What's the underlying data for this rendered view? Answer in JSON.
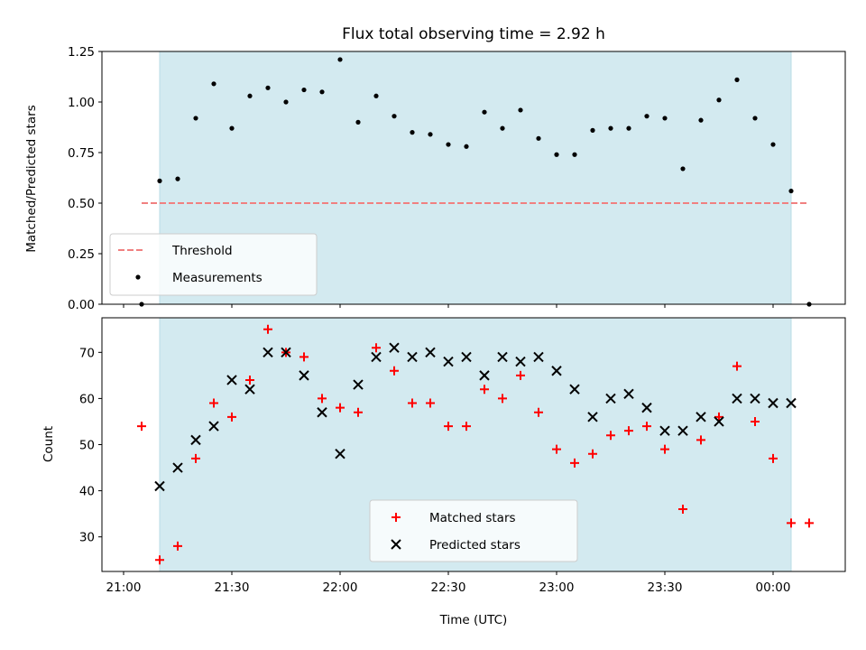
{
  "chart_data": [
    {
      "type": "scatter",
      "title": "Flux total observing time = 2.92 h",
      "ylabel": "Matched/Predicted stars",
      "xlabel": "",
      "ylim": [
        0,
        1.25
      ],
      "yticks": [
        "0.00",
        "0.25",
        "0.50",
        "0.75",
        "1.00",
        "1.25"
      ],
      "shaded_span": [
        "21:10",
        "00:05"
      ],
      "threshold": {
        "name": "Threshold",
        "value": 0.5,
        "x_range": [
          "21:05",
          "00:10"
        ],
        "color": "#f08080"
      },
      "series": [
        {
          "name": "Measurements",
          "marker": "dot",
          "color": "#000000",
          "x": [
            "21:05",
            "21:10",
            "21:15",
            "21:20",
            "21:25",
            "21:30",
            "21:35",
            "21:40",
            "21:45",
            "21:50",
            "21:55",
            "22:00",
            "22:05",
            "22:10",
            "22:15",
            "22:20",
            "22:25",
            "22:30",
            "22:35",
            "22:40",
            "22:45",
            "22:50",
            "22:55",
            "23:00",
            "23:05",
            "23:10",
            "23:15",
            "23:20",
            "23:25",
            "23:30",
            "23:35",
            "23:40",
            "23:45",
            "23:50",
            "23:55",
            "00:00",
            "00:05",
            "00:10"
          ],
          "y": [
            0.0,
            0.61,
            0.62,
            0.92,
            1.09,
            0.87,
            1.03,
            1.07,
            1.0,
            1.06,
            1.05,
            1.21,
            0.9,
            1.03,
            0.93,
            0.85,
            0.84,
            0.79,
            0.78,
            0.95,
            0.87,
            0.96,
            0.82,
            0.74,
            0.74,
            0.86,
            0.87,
            0.87,
            0.93,
            0.92,
            0.67,
            0.91,
            1.01,
            1.11,
            0.92,
            0.79,
            0.56,
            0.0
          ]
        }
      ],
      "legend": "lower-left"
    },
    {
      "type": "scatter",
      "title": "",
      "ylabel": "Count",
      "xlabel": "Time (UTC)",
      "ylim": [
        22.5,
        77.5
      ],
      "yticks": [
        "30",
        "40",
        "50",
        "60",
        "70"
      ],
      "xticks": [
        "21:00",
        "21:30",
        "22:00",
        "22:30",
        "23:00",
        "23:30",
        "00:00"
      ],
      "shaded_span": [
        "21:10",
        "00:05"
      ],
      "series": [
        {
          "name": "Matched stars",
          "marker": "plus",
          "color": "#ff0000",
          "x": [
            "21:05",
            "21:10",
            "21:15",
            "21:20",
            "21:25",
            "21:30",
            "21:35",
            "21:40",
            "21:45",
            "21:50",
            "21:55",
            "22:00",
            "22:05",
            "22:10",
            "22:15",
            "22:20",
            "22:25",
            "22:30",
            "22:35",
            "22:40",
            "22:45",
            "22:50",
            "22:55",
            "23:00",
            "23:05",
            "23:10",
            "23:15",
            "23:20",
            "23:25",
            "23:30",
            "23:35",
            "23:40",
            "23:45",
            "23:50",
            "23:55",
            "00:00",
            "00:05",
            "00:10"
          ],
          "y": [
            54,
            25,
            28,
            47,
            59,
            56,
            64,
            75,
            70,
            69,
            60,
            58,
            57,
            71,
            66,
            59,
            59,
            54,
            54,
            62,
            60,
            65,
            57,
            49,
            46,
            48,
            52,
            53,
            54,
            49,
            36,
            51,
            56,
            67,
            55,
            47,
            33,
            33
          ]
        },
        {
          "name": "Predicted stars",
          "marker": "x",
          "color": "#000000",
          "x": [
            "21:10",
            "21:15",
            "21:20",
            "21:25",
            "21:30",
            "21:35",
            "21:40",
            "21:45",
            "21:50",
            "21:55",
            "22:00",
            "22:05",
            "22:10",
            "22:15",
            "22:20",
            "22:25",
            "22:30",
            "22:35",
            "22:40",
            "22:45",
            "22:50",
            "22:55",
            "23:00",
            "23:05",
            "23:10",
            "23:15",
            "23:20",
            "23:25",
            "23:30",
            "23:35",
            "23:40",
            "23:45",
            "23:50",
            "23:55",
            "00:00",
            "00:05"
          ],
          "y": [
            41,
            45,
            51,
            54,
            64,
            62,
            70,
            70,
            65,
            57,
            48,
            63,
            69,
            71,
            69,
            70,
            68,
            69,
            65,
            69,
            68,
            69,
            66,
            62,
            56,
            60,
            61,
            58,
            53,
            53,
            56,
            55,
            60,
            60,
            59,
            59
          ]
        }
      ],
      "legend": "lower-center"
    }
  ],
  "colors": {
    "span": "#d3eaf0",
    "span_edge": "#b8dce6"
  }
}
